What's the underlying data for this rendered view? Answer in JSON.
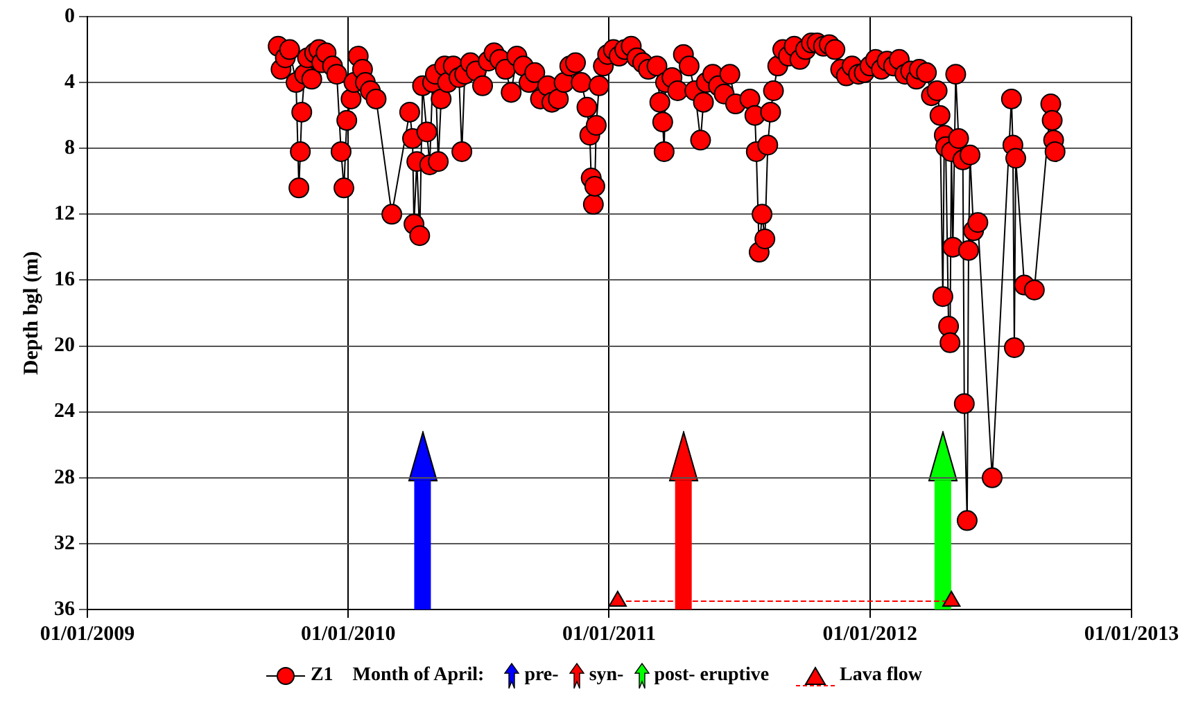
{
  "chart_data": {
    "type": "line",
    "ylabel": "Depth bgl (m)",
    "legend_title": "Month of April:",
    "xlim": [
      "2009-01-01",
      "2013-01-01"
    ],
    "xticks": [
      {
        "value": "2009-01-01",
        "label": "01/01/2009"
      },
      {
        "value": "2010-01-01",
        "label": "01/01/2010"
      },
      {
        "value": "2011-01-01",
        "label": "01/01/2011"
      },
      {
        "value": "2012-01-01",
        "label": "01/01/2012"
      },
      {
        "value": "2013-01-01",
        "label": "01/01/2013"
      }
    ],
    "ylim": [
      36,
      0
    ],
    "yticks": [
      0,
      4,
      8,
      12,
      16,
      20,
      24,
      28,
      32,
      36
    ],
    "grid": true,
    "legend": "bottom",
    "series": [
      {
        "name": "Z1",
        "color": "#ff0000",
        "marker": "circle",
        "line_style": "solid",
        "x": [
          "2009-09-25",
          "2009-09-29",
          "2009-10-05",
          "2009-10-11",
          "2009-10-20",
          "2009-10-24",
          "2009-10-26",
          "2009-10-28",
          "2009-11-01",
          "2009-11-05",
          "2009-11-11",
          "2009-11-15",
          "2009-11-21",
          "2009-11-25",
          "2009-12-01",
          "2009-12-10",
          "2009-12-16",
          "2009-12-22",
          "2009-12-26",
          "2009-12-30",
          "2010-01-05",
          "2010-01-09",
          "2010-01-15",
          "2010-01-21",
          "2010-01-25",
          "2010-02-01",
          "2010-02-09",
          "2010-03-03",
          "2010-03-28",
          "2010-04-01",
          "2010-04-03",
          "2010-04-07",
          "2010-04-11",
          "2010-04-15",
          "2010-04-21",
          "2010-04-25",
          "2010-04-29",
          "2010-05-03",
          "2010-05-07",
          "2010-05-11",
          "2010-05-16",
          "2010-05-20",
          "2010-05-28",
          "2010-06-05",
          "2010-06-09",
          "2010-06-13",
          "2010-06-21",
          "2010-06-29",
          "2010-07-08",
          "2010-07-16",
          "2010-07-24",
          "2010-08-01",
          "2010-08-09",
          "2010-08-17",
          "2010-08-25",
          "2010-09-03",
          "2010-09-11",
          "2010-09-19",
          "2010-09-27",
          "2010-10-07",
          "2010-10-13",
          "2010-10-22",
          "2010-10-30",
          "2010-11-07",
          "2010-11-15",
          "2010-11-23",
          "2010-12-01",
          "2010-12-05",
          "2010-12-07",
          "2010-12-10",
          "2010-12-12",
          "2010-12-14",
          "2010-12-18",
          "2010-12-24",
          "2010-12-30",
          "2011-01-07",
          "2011-01-15",
          "2011-01-23",
          "2011-02-01",
          "2011-02-09",
          "2011-02-17",
          "2011-02-25",
          "2011-03-09",
          "2011-03-13",
          "2011-03-17",
          "2011-03-19",
          "2011-03-21",
          "2011-03-30",
          "2011-04-07",
          "2011-04-15",
          "2011-04-23",
          "2011-05-01",
          "2011-05-09",
          "2011-05-13",
          "2011-05-17",
          "2011-05-26",
          "2011-06-03",
          "2011-06-11",
          "2011-06-19",
          "2011-06-27",
          "2011-07-17",
          "2011-07-24",
          "2011-07-26",
          "2011-07-30",
          "2011-08-03",
          "2011-08-07",
          "2011-08-11",
          "2011-08-15",
          "2011-08-19",
          "2011-08-25",
          "2011-09-01",
          "2011-09-09",
          "2011-09-17",
          "2011-09-25",
          "2011-10-03",
          "2011-10-11",
          "2011-10-19",
          "2011-10-28",
          "2011-11-05",
          "2011-11-13",
          "2011-11-21",
          "2011-11-29",
          "2011-12-07",
          "2011-12-16",
          "2011-12-24",
          "2012-01-01",
          "2012-01-09",
          "2012-01-17",
          "2012-01-25",
          "2012-02-03",
          "2012-02-11",
          "2012-02-19",
          "2012-02-27",
          "2012-03-06",
          "2012-03-10",
          "2012-03-20",
          "2012-03-27",
          "2012-04-04",
          "2012-04-08",
          "2012-04-12",
          "2012-04-14",
          "2012-04-16",
          "2012-04-20",
          "2012-04-22",
          "2012-04-24",
          "2012-04-26",
          "2012-04-30",
          "2012-05-04",
          "2012-05-10",
          "2012-05-12",
          "2012-05-16",
          "2012-05-18",
          "2012-05-20",
          "2012-05-25",
          "2012-05-31",
          "2012-06-20",
          "2012-07-17",
          "2012-07-19",
          "2012-07-21",
          "2012-07-23",
          "2012-08-04",
          "2012-08-18",
          "2012-09-10",
          "2012-09-12",
          "2012-09-14",
          "2012-09-16"
        ],
        "values": [
          1.8,
          3.2,
          2.5,
          2.0,
          4.0,
          10.4,
          8.2,
          5.8,
          3.5,
          2.5,
          3.8,
          2.2,
          2.0,
          2.8,
          2.2,
          3.0,
          3.5,
          8.2,
          10.4,
          6.3,
          5.0,
          4.0,
          2.4,
          3.2,
          4.0,
          4.5,
          5.0,
          12.0,
          5.8,
          7.4,
          12.6,
          8.8,
          13.3,
          4.2,
          7.0,
          9.0,
          4.0,
          3.5,
          8.8,
          5.0,
          3.0,
          4.0,
          3.0,
          3.7,
          8.2,
          3.5,
          2.8,
          3.3,
          4.2,
          2.7,
          2.2,
          2.6,
          3.2,
          4.6,
          2.4,
          3.0,
          4.0,
          3.4,
          5.0,
          4.2,
          5.2,
          5.0,
          4.0,
          3.0,
          2.8,
          4.0,
          5.5,
          7.2,
          9.8,
          11.4,
          10.3,
          6.6,
          4.2,
          3.0,
          2.3,
          2.0,
          2.4,
          2.0,
          1.8,
          2.5,
          2.8,
          3.2,
          3.0,
          5.2,
          6.4,
          8.2,
          4.0,
          3.7,
          4.5,
          2.3,
          3.0,
          4.5,
          7.5,
          5.2,
          4.0,
          3.5,
          4.2,
          4.7,
          3.5,
          5.3,
          5.0,
          6.0,
          8.2,
          14.3,
          12.0,
          13.5,
          7.8,
          5.8,
          4.5,
          3.0,
          2.0,
          2.4,
          1.8,
          2.6,
          2.0,
          1.6,
          1.6,
          1.8,
          1.7,
          2.0,
          3.2,
          3.6,
          3.0,
          3.5,
          3.4,
          3.0,
          2.6,
          3.2,
          2.7,
          3.0,
          2.6,
          3.5,
          3.3,
          3.8,
          3.2,
          3.4,
          4.8,
          4.5,
          6.0,
          17.0,
          7.2,
          7.9,
          18.8,
          19.8,
          8.2,
          14.0,
          3.5,
          7.4,
          8.7,
          23.5,
          30.6,
          14.2,
          8.4,
          13.0,
          12.5,
          28.0,
          5.0,
          7.8,
          20.1,
          8.6,
          16.3,
          16.6,
          5.3,
          6.3,
          7.5,
          8.2
        ]
      },
      {
        "name": "Lava flow",
        "color": "#ff0000",
        "marker": "triangle",
        "line_style": "dashed",
        "x": [
          "2011-01-13",
          "2012-04-24"
        ],
        "values": [
          35.5,
          35.5
        ]
      }
    ],
    "ref_lines": [
      {
        "axis": "x",
        "value": "2010-04-15",
        "label": "pre-",
        "color": "#0000ff"
      },
      {
        "axis": "x",
        "value": "2011-04-15",
        "label": "syn-",
        "color": "#ff0000"
      },
      {
        "axis": "x",
        "value": "2012-04-12",
        "label": "post- eruptive",
        "color": "#00ff00"
      }
    ]
  }
}
